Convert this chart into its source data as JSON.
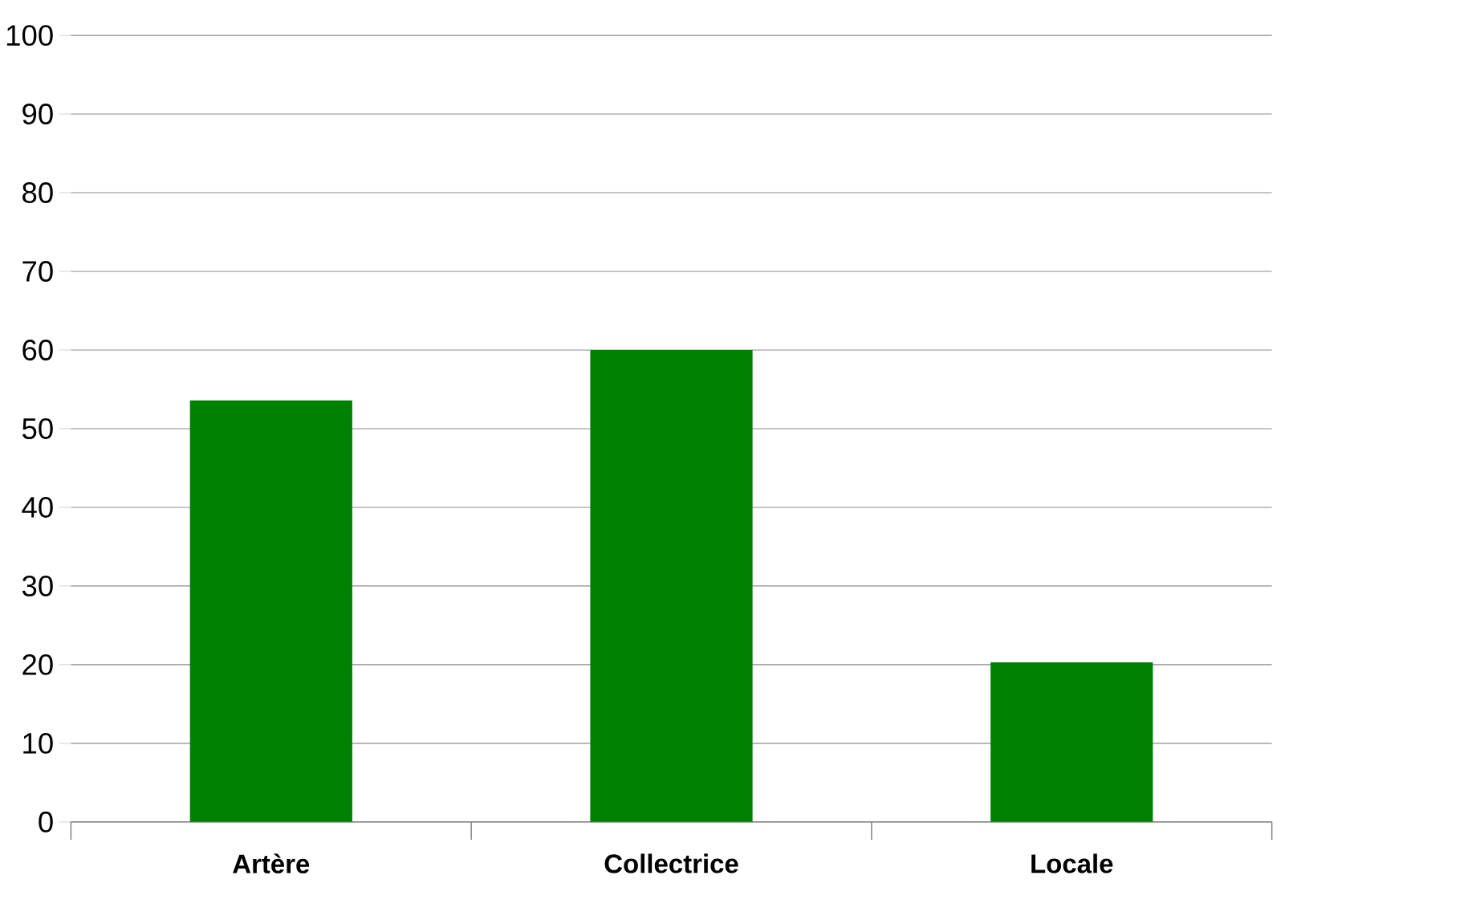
{
  "chart_data": {
    "type": "bar",
    "categories": [
      "Artère",
      "Collectrice",
      "Locale"
    ],
    "values": [
      53.6,
      60,
      20.3
    ],
    "color": "#008000",
    "ylim": [
      0,
      100
    ],
    "yticks": [
      0,
      10,
      20,
      30,
      40,
      50,
      60,
      70,
      80,
      90,
      100
    ],
    "grid": "y"
  }
}
